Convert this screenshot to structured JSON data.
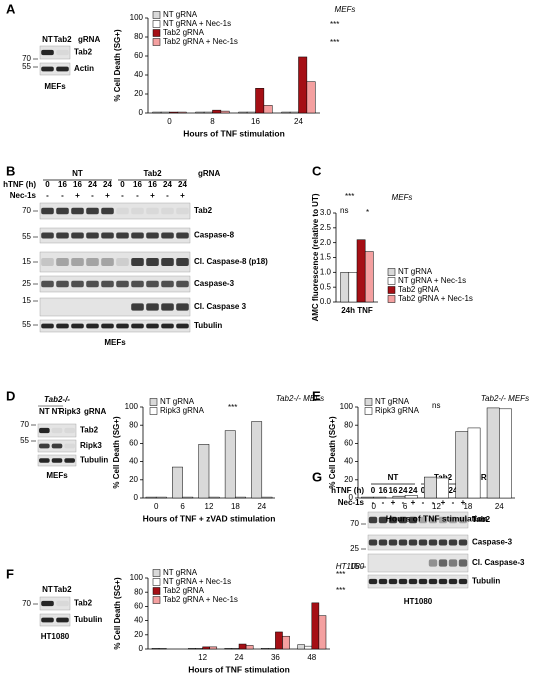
{
  "panel_labels": [
    "A",
    "B",
    "C",
    "D",
    "E",
    "F",
    "G"
  ],
  "blots": [
    {
      "lane_labels": [
        "NT",
        "Tab2"
      ],
      "suffix": "gRNA",
      "row_labels": [
        "Tab2",
        "Actin"
      ],
      "markers": [
        "70",
        "55"
      ],
      "caption": "MEFs"
    },
    {
      "group_labels": [
        "NT",
        "Tab2"
      ],
      "suffix": "gRNA",
      "condition_rows": [
        {
          "label": "hTNF (h)",
          "values": [
            "0",
            "16",
            "16",
            "24",
            "24",
            "0",
            "16",
            "16",
            "24",
            "24"
          ]
        },
        {
          "label": "Nec-1s",
          "values": [
            "-",
            "-",
            "+",
            "-",
            "+",
            "-",
            "-",
            "+",
            "-",
            "+"
          ]
        }
      ],
      "row_labels": [
        "Tab2",
        "Caspase-8",
        "Cl. Caspase-8 (p18)",
        "Caspase-3",
        "Cl. Caspase 3",
        "Tubulin"
      ],
      "markers": [
        "70",
        "55",
        "15",
        "25",
        "15",
        "55"
      ],
      "caption": "MEFs"
    },
    {
      "header": "Tab2-/-",
      "lane_labels": [
        "NT",
        "NT",
        "Ripk3"
      ],
      "suffix": "gRNA",
      "row_labels": [
        "Tab2",
        "Ripk3",
        "Tubulin"
      ],
      "markers": [
        "70",
        "55"
      ],
      "caption": "MEFs"
    },
    {
      "lane_labels": [
        "NT",
        "Tab2"
      ],
      "row_labels": [
        "Tab2",
        "Tubulin"
      ],
      "markers": [
        "70"
      ],
      "caption": "HT1080"
    },
    {
      "group_labels": [
        "NT",
        "Tab2"
      ],
      "suffix": "gRNA",
      "condition_rows": [
        {
          "label": "hTNF (h)",
          "values": [
            "0",
            "16",
            "16",
            "24",
            "24",
            "0",
            "16",
            "16",
            "24",
            "24"
          ]
        },
        {
          "label": "Nec-1s",
          "values": [
            "-",
            "-",
            "+",
            "-",
            "+",
            "-",
            "-",
            "+",
            "-",
            "+"
          ]
        }
      ],
      "row_labels": [
        "Tab2",
        "Caspase-3",
        "Cl. Caspase-3",
        "Tubulin"
      ],
      "markers": [
        "70",
        "25",
        "15"
      ],
      "caption": "HT1080"
    }
  ],
  "chart_data": [
    {
      "type": "bar",
      "title": "MEFs",
      "xlabel": "Hours of TNF stimulation",
      "ylabel": "% Cell Death (SG+)",
      "categories": [
        "0",
        "8",
        "16",
        "24"
      ],
      "series": [
        {
          "name": "NT gRNA",
          "color": "#d9d9d9",
          "values": [
            1,
            1,
            1,
            1
          ]
        },
        {
          "name": "NT gRNA + Nec-1s",
          "color": "#ffffff",
          "values": [
            1,
            1,
            1,
            1
          ]
        },
        {
          "name": "Tab2 gRNA",
          "color": "#a50f15",
          "values": [
            1,
            3,
            26,
            59
          ]
        },
        {
          "name": "Tab2 gRNA + Nec-1s",
          "color": "#f4a0a0",
          "values": [
            1,
            2,
            8,
            33
          ]
        }
      ],
      "ylim": [
        0,
        100
      ],
      "yticks": [
        0,
        20,
        40,
        60,
        80,
        100
      ],
      "annotations": [
        "***",
        "***"
      ]
    },
    {
      "type": "bar",
      "title": "MEFs",
      "ylabel": "AMC fluorescence (relative to UT)",
      "categories": [
        "24h TNF"
      ],
      "series": [
        {
          "name": "NT gRNA",
          "color": "#d9d9d9",
          "values": [
            1.0
          ]
        },
        {
          "name": "NT gRNA + Nec-1s",
          "color": "#ffffff",
          "values": [
            1.0
          ]
        },
        {
          "name": "Tab2 gRNA",
          "color": "#a50f15",
          "values": [
            2.1
          ]
        },
        {
          "name": "Tab2 gRNA + Nec-1s",
          "color": "#f4a0a0",
          "values": [
            1.7
          ]
        }
      ],
      "ylim": [
        0,
        3
      ],
      "yticks": [
        {
          "value": 0,
          "label": "0.0"
        },
        {
          "value": 0.5,
          "label": "0.5"
        },
        {
          "value": 1,
          "label": "1.0"
        },
        {
          "value": 1.5,
          "label": "1.5"
        },
        {
          "value": 2,
          "label": "2.0"
        },
        {
          "value": 2.5,
          "label": "2.5"
        },
        {
          "value": 3,
          "label": "3.0"
        }
      ],
      "annotations": [
        "***",
        "ns",
        "*"
      ]
    },
    {
      "type": "bar",
      "title": "Tab2-/- MEFs",
      "xlabel": "Hours of TNF + zVAD stimulation",
      "ylabel": "% Cell Death (SG+)",
      "categories": [
        "0",
        "6",
        "12",
        "18",
        "24"
      ],
      "series": [
        {
          "name": "NT gRNA",
          "color": "#d9d9d9",
          "values": [
            1,
            34,
            59,
            74,
            84
          ]
        },
        {
          "name": "Ripk3 gRNA",
          "color": "#ffffff",
          "values": [
            1,
            1,
            1,
            1,
            1
          ]
        }
      ],
      "ylim": [
        0,
        100
      ],
      "yticks": [
        0,
        20,
        40,
        60,
        80,
        100
      ],
      "annotations": [
        "***"
      ]
    },
    {
      "type": "bar",
      "title": "Tab2-/- MEFs",
      "xlabel": "Hours of TNF stimulation",
      "ylabel": "% Cell Death (SG+)",
      "categories": [
        "0",
        "6",
        "12",
        "18",
        "24"
      ],
      "series": [
        {
          "name": "NT gRNA",
          "color": "#d9d9d9",
          "values": [
            1,
            2,
            23,
            73,
            99
          ]
        },
        {
          "name": "Ripk3 gRNA",
          "color": "#ffffff",
          "values": [
            1,
            3,
            22,
            77,
            98
          ]
        }
      ],
      "ylim": [
        0,
        100
      ],
      "yticks": [
        0,
        20,
        40,
        60,
        80,
        100
      ],
      "annotations": [
        "ns"
      ]
    },
    {
      "type": "bar",
      "title": "HT1080",
      "xlabel": "Hours of TNF stimulation",
      "ylabel": "% Cell Death (SG+)",
      "categories": [
        null,
        "12",
        "24",
        "36",
        "48"
      ],
      "series": [
        {
          "name": "NT gRNA",
          "color": "#d9d9d9",
          "values": [
            1,
            1,
            1,
            1,
            6
          ]
        },
        {
          "name": "NT gRNA + Nec-1s",
          "color": "#ffffff",
          "values": [
            1,
            1,
            1,
            1,
            4
          ]
        },
        {
          "name": "Tab2 gRNA",
          "color": "#a50f15",
          "values": [
            0,
            3,
            7,
            24,
            65
          ]
        },
        {
          "name": "Tab2 gRNA + Nec-1s",
          "color": "#f4a0a0",
          "values": [
            0,
            3,
            5,
            18,
            47
          ]
        }
      ],
      "ylim": [
        0,
        100
      ],
      "yticks": [
        0,
        20,
        40,
        60,
        80,
        100
      ],
      "annotations": [
        "***",
        "***"
      ]
    }
  ]
}
